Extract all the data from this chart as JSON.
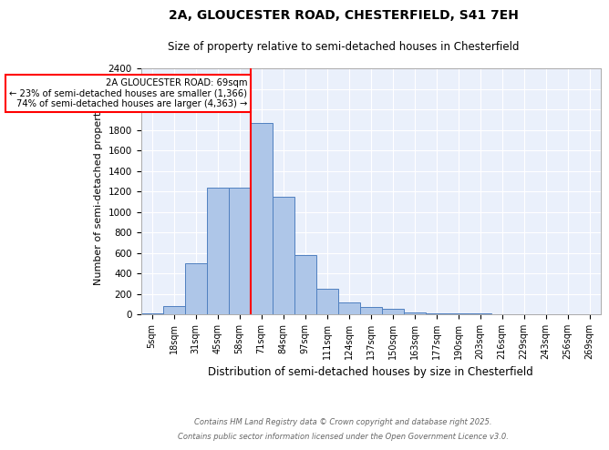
{
  "title_line1": "2A, GLOUCESTER ROAD, CHESTERFIELD, S41 7EH",
  "title_line2": "Size of property relative to semi-detached houses in Chesterfield",
  "xlabel": "Distribution of semi-detached houses by size in Chesterfield",
  "ylabel": "Number of semi-detached properties",
  "categories": [
    "5sqm",
    "18sqm",
    "31sqm",
    "45sqm",
    "58sqm",
    "71sqm",
    "84sqm",
    "97sqm",
    "111sqm",
    "124sqm",
    "137sqm",
    "150sqm",
    "163sqm",
    "177sqm",
    "190sqm",
    "203sqm",
    "216sqm",
    "229sqm",
    "243sqm",
    "256sqm",
    "269sqm"
  ],
  "bar_values": [
    10,
    80,
    500,
    1240,
    1240,
    1870,
    1150,
    575,
    245,
    120,
    75,
    50,
    20,
    10,
    5,
    5,
    2,
    2,
    0,
    0,
    0
  ],
  "bar_color": "#aec6e8",
  "bar_edgecolor": "#5080c0",
  "red_line_index": 5,
  "red_line_label": "2A GLOUCESTER ROAD: 69sqm",
  "annotation_smaller": "← 23% of semi-detached houses are smaller (1,366)",
  "annotation_larger": "74% of semi-detached houses are larger (4,363) →",
  "annotation_box_color": "white",
  "annotation_box_edgecolor": "red",
  "ylim": [
    0,
    2400
  ],
  "yticks": [
    0,
    200,
    400,
    600,
    800,
    1000,
    1200,
    1400,
    1600,
    1800,
    2000,
    2200,
    2400
  ],
  "background_color": "#eaf0fb",
  "grid_color": "white",
  "footer_line1": "Contains HM Land Registry data © Crown copyright and database right 2025.",
  "footer_line2": "Contains public sector information licensed under the Open Government Licence v3.0."
}
